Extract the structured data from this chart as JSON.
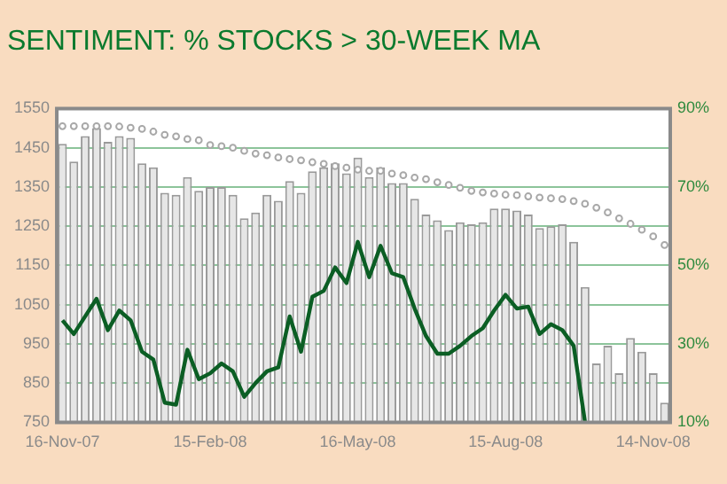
{
  "chart_data": {
    "type": "bar",
    "title": "SENTIMENT: % STOCKS > 30-WEEK MA",
    "categories": [
      "16-Nov-07",
      null,
      null,
      null,
      null,
      null,
      null,
      null,
      null,
      null,
      null,
      null,
      null,
      "15-Feb-08",
      null,
      null,
      null,
      null,
      null,
      null,
      null,
      null,
      null,
      null,
      null,
      null,
      "16-May-08",
      null,
      null,
      null,
      null,
      null,
      null,
      null,
      null,
      null,
      null,
      null,
      null,
      "15-Aug-08",
      null,
      null,
      null,
      null,
      null,
      null,
      null,
      null,
      null,
      null,
      null,
      null,
      "14-Nov-08",
      null
    ],
    "series": [
      {
        "color": "#e6e6e6",
        "values": [
          1460,
          1415,
          1480,
          1500,
          1465,
          1480,
          1475,
          1410,
          1400,
          1335,
          1330,
          1375,
          1340,
          1350,
          1350,
          1330,
          1270,
          1285,
          1330,
          1315,
          1365,
          1335,
          1390,
          1400,
          1410,
          1385,
          1425,
          1375,
          1400,
          1360,
          1360,
          1320,
          1280,
          1265,
          1240,
          1260,
          1255,
          1260,
          1295,
          1295,
          1290,
          1280,
          1245,
          1250,
          1255,
          1210,
          1095,
          900,
          945,
          875,
          965,
          930,
          875,
          800
        ]
      },
      {
        "type": "scatter",
        "marker": "circle",
        "color": "#a8a8a8",
        "values": [
          1505,
          1505,
          1505,
          1505,
          1505,
          1504,
          1501,
          1498,
          1491,
          1483,
          1479,
          1472,
          1469,
          1457,
          1454,
          1450,
          1442,
          1435,
          1431,
          1425,
          1421,
          1418,
          1413,
          1409,
          1403,
          1399,
          1394,
          1391,
          1391,
          1384,
          1380,
          1374,
          1370,
          1362,
          1355,
          1348,
          1340,
          1336,
          1333,
          1330,
          1329,
          1326,
          1323,
          1321,
          1319,
          1314,
          1307,
          1297,
          1285,
          1270,
          1256,
          1241,
          1224,
          1202
        ]
      },
      {
        "type": "line",
        "axis": "y2",
        "color": "#0b5e24",
        "line_style": "solid",
        "values": [
          36,
          32.5,
          37,
          41.5,
          33.5,
          38.5,
          36,
          28,
          26,
          15,
          14.5,
          28.5,
          21,
          22.5,
          25,
          23,
          16.5,
          20,
          23,
          24,
          37,
          28,
          42,
          43.5,
          49.5,
          45.5,
          56,
          47,
          55,
          48,
          47,
          39,
          32,
          27.5,
          27.5,
          29.5,
          32,
          34,
          38.5,
          42.5,
          39,
          39.5,
          32.5,
          35,
          33.5,
          29.5,
          10,
          null,
          null,
          null,
          null,
          null,
          null,
          null
        ]
      }
    ],
    "ylim": [
      750,
      1550
    ],
    "yticks": [
      750,
      850,
      950,
      1050,
      1150,
      1250,
      1350,
      1450,
      1550
    ],
    "y2lim": [
      10,
      90
    ],
    "y2ticks": [
      {
        "value": 10,
        "label": "10%"
      },
      {
        "value": 30,
        "label": "30%"
      },
      {
        "value": 50,
        "label": "50%"
      },
      {
        "value": 70,
        "label": "70%"
      },
      {
        "value": 90,
        "label": "90%"
      }
    ],
    "grid": "y",
    "legend": false
  }
}
